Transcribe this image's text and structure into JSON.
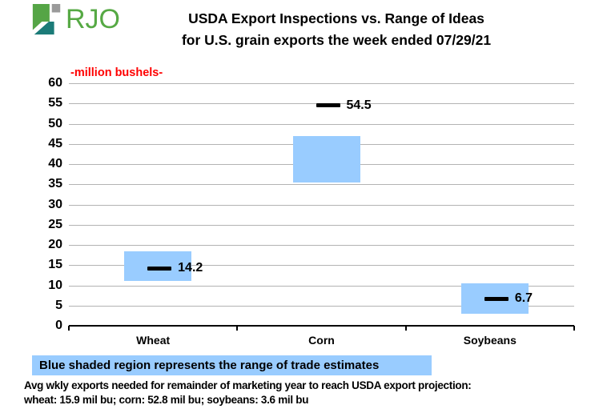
{
  "header": {
    "logo_text": "RJO",
    "title_line1": "USDA Export Inspections vs. Range of Ideas",
    "title_line2": "for U.S. grain exports the week ended 07/29/21"
  },
  "chart_data": {
    "type": "bar",
    "subtype": "floating-range-bars-with-value-markers",
    "title": "USDA Export Inspections vs. Range of Ideas for U.S. grain exports the week ended 07/29/21",
    "xlabel": "",
    "ylabel": "-million bushels-",
    "categories": [
      "Wheat",
      "Corn",
      "Soybeans"
    ],
    "series": [
      {
        "name": "Range of trade estimates",
        "type": "range-bar",
        "low": [
          11,
          35.5,
          3
        ],
        "high": [
          18.5,
          47,
          10.5
        ]
      },
      {
        "name": "USDA export inspections (actual)",
        "type": "marker",
        "values": [
          14.2,
          54.5,
          6.7
        ],
        "labels": [
          "14.2",
          "54.5",
          "6.7"
        ]
      }
    ],
    "ylim": [
      0,
      60
    ],
    "ytick_step": 5,
    "grid": true,
    "legend_position": "below",
    "colors": {
      "range_bar": "#99CCFF",
      "marker": "#000000",
      "grid": "#B3B3B3",
      "ylabel_text": "#FF0000",
      "axis": "#000000"
    }
  },
  "legend": {
    "text": "Blue shaded region represents the range of trade estimates"
  },
  "footer": {
    "line1": "Avg wkly exports needed for remainder of marketing year to reach USDA export projection:",
    "line2": "wheat: 15.9 mil bu; corn: 52.8 mil bu; soybeans: 3.6 mil bu"
  },
  "brand": {
    "green": "#55A546",
    "teal": "#1B7B78",
    "gray": "#9A9A9A",
    "text_green": "#56A944"
  }
}
